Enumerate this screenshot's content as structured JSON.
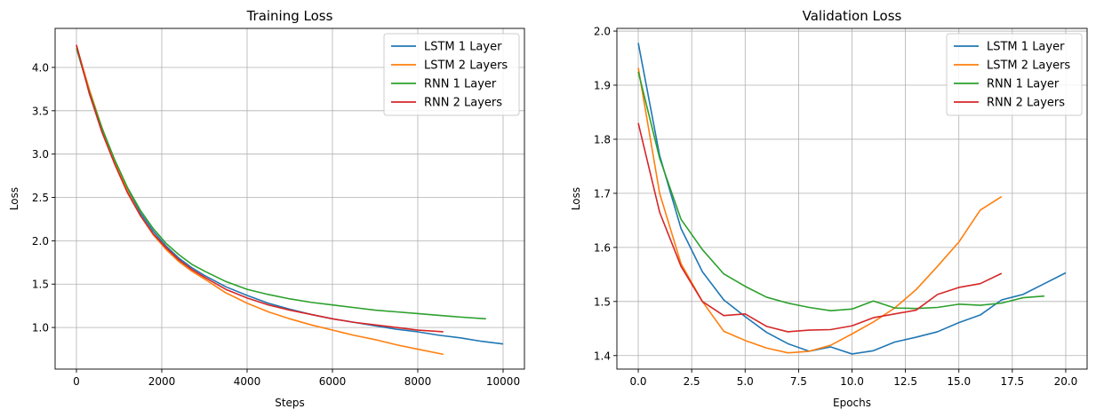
{
  "chart_data": [
    {
      "type": "line",
      "title": "Training Loss",
      "xlabel": "Steps",
      "ylabel": "Loss",
      "xlim": [
        -500,
        10500
      ],
      "ylim": [
        0.52,
        4.45
      ],
      "xticks": [
        0,
        2000,
        4000,
        6000,
        8000,
        10000
      ],
      "xtick_labels": [
        "0",
        "2000",
        "4000",
        "6000",
        "8000",
        "10000"
      ],
      "yticks": [
        1.0,
        1.5,
        2.0,
        2.5,
        3.0,
        3.5,
        4.0
      ],
      "ytick_labels": [
        "1.0",
        "1.5",
        "2.0",
        "2.5",
        "3.0",
        "3.5",
        "4.0"
      ],
      "grid": true,
      "legend": "upper right",
      "series": [
        {
          "name": "LSTM 1 Layer",
          "color": "#1f77b4",
          "x": [
            0,
            300,
            600,
            900,
            1200,
            1500,
            1800,
            2100,
            2400,
            2700,
            3000,
            3500,
            4000,
            4500,
            5000,
            5500,
            6000,
            6500,
            7000,
            7500,
            8000,
            8500,
            9000,
            9500,
            10000
          ],
          "y": [
            4.25,
            3.72,
            3.28,
            2.9,
            2.58,
            2.32,
            2.11,
            1.94,
            1.8,
            1.69,
            1.6,
            1.47,
            1.37,
            1.28,
            1.21,
            1.15,
            1.1,
            1.06,
            1.02,
            0.98,
            0.95,
            0.91,
            0.88,
            0.84,
            0.81
          ]
        },
        {
          "name": "LSTM 2 Layers",
          "color": "#ff7f0e",
          "x": [
            0,
            300,
            600,
            900,
            1200,
            1500,
            1800,
            2100,
            2400,
            2700,
            3000,
            3500,
            4000,
            4500,
            5000,
            5500,
            6000,
            6500,
            7000,
            7500,
            8000,
            8600
          ],
          "y": [
            4.25,
            3.75,
            3.3,
            2.9,
            2.57,
            2.29,
            2.07,
            1.9,
            1.76,
            1.65,
            1.56,
            1.4,
            1.28,
            1.18,
            1.1,
            1.03,
            0.97,
            0.91,
            0.86,
            0.8,
            0.75,
            0.69
          ]
        },
        {
          "name": "RNN 1 Layer",
          "color": "#2ca02c",
          "x": [
            0,
            300,
            600,
            900,
            1200,
            1500,
            1800,
            2100,
            2400,
            2700,
            3000,
            3500,
            4000,
            4500,
            5000,
            5500,
            6000,
            6500,
            7000,
            7500,
            8000,
            8500,
            9000,
            9600
          ],
          "y": [
            4.22,
            3.72,
            3.3,
            2.93,
            2.61,
            2.35,
            2.14,
            1.97,
            1.84,
            1.73,
            1.65,
            1.53,
            1.44,
            1.38,
            1.33,
            1.29,
            1.26,
            1.23,
            1.2,
            1.18,
            1.16,
            1.14,
            1.12,
            1.1
          ]
        },
        {
          "name": "RNN 2 Layers",
          "color": "#d62728",
          "x": [
            0,
            300,
            600,
            900,
            1200,
            1500,
            1800,
            2100,
            2400,
            2700,
            3000,
            3500,
            4000,
            4500,
            5000,
            5500,
            6000,
            6500,
            7000,
            7500,
            8000,
            8600
          ],
          "y": [
            4.26,
            3.7,
            3.25,
            2.88,
            2.55,
            2.29,
            2.08,
            1.92,
            1.78,
            1.67,
            1.58,
            1.44,
            1.34,
            1.26,
            1.2,
            1.15,
            1.1,
            1.06,
            1.03,
            1.0,
            0.97,
            0.95
          ]
        }
      ]
    },
    {
      "type": "line",
      "title": "Validation Loss",
      "xlabel": "Epochs",
      "ylabel": "Loss",
      "xlim": [
        -1.0,
        21.0
      ],
      "ylim": [
        1.375,
        2.005
      ],
      "xticks": [
        0,
        2.5,
        5,
        7.5,
        10,
        12.5,
        15,
        17.5,
        20
      ],
      "xtick_labels": [
        "0.0",
        "2.5",
        "5.0",
        "7.5",
        "10.0",
        "12.5",
        "15.0",
        "17.5",
        "20.0"
      ],
      "yticks": [
        1.4,
        1.5,
        1.6,
        1.7,
        1.8,
        1.9,
        2.0
      ],
      "ytick_labels": [
        "1.4",
        "1.5",
        "1.6",
        "1.7",
        "1.8",
        "1.9",
        "2.0"
      ],
      "grid": true,
      "legend": "upper right",
      "series": [
        {
          "name": "LSTM 1 Layer",
          "color": "#1f77b4",
          "x": [
            0,
            1,
            2,
            3,
            4,
            5,
            6,
            7,
            8,
            9,
            10,
            11,
            12,
            13,
            14,
            15,
            16,
            17,
            18,
            19,
            20
          ],
          "y": [
            1.978,
            1.77,
            1.635,
            1.555,
            1.503,
            1.472,
            1.443,
            1.422,
            1.408,
            1.416,
            1.403,
            1.409,
            1.425,
            1.434,
            1.444,
            1.461,
            1.475,
            1.503,
            1.513,
            1.533,
            1.553
          ]
        },
        {
          "name": "LSTM 2 Layers",
          "color": "#ff7f0e",
          "x": [
            0,
            1,
            2,
            3,
            4,
            5,
            6,
            7,
            8,
            9,
            10,
            11,
            12,
            13,
            14,
            15,
            16,
            17
          ],
          "y": [
            1.932,
            1.7,
            1.57,
            1.5,
            1.445,
            1.428,
            1.414,
            1.405,
            1.408,
            1.419,
            1.44,
            1.462,
            1.488,
            1.522,
            1.565,
            1.61,
            1.669,
            1.694
          ]
        },
        {
          "name": "RNN 1 Layer",
          "color": "#2ca02c",
          "x": [
            0,
            1,
            2,
            3,
            4,
            5,
            6,
            7,
            8,
            9,
            10,
            11,
            12,
            13,
            14,
            15,
            16,
            17,
            18,
            19
          ],
          "y": [
            1.925,
            1.765,
            1.652,
            1.596,
            1.551,
            1.528,
            1.508,
            1.497,
            1.489,
            1.483,
            1.486,
            1.501,
            1.488,
            1.487,
            1.489,
            1.495,
            1.493,
            1.497,
            1.507,
            1.51
          ]
        },
        {
          "name": "RNN 2 Layers",
          "color": "#d62728",
          "x": [
            0,
            1,
            2,
            3,
            4,
            5,
            6,
            7,
            8,
            9,
            10,
            11,
            12,
            13,
            14,
            15,
            16,
            17
          ],
          "y": [
            1.83,
            1.665,
            1.565,
            1.5,
            1.474,
            1.477,
            1.454,
            1.444,
            1.447,
            1.448,
            1.455,
            1.47,
            1.477,
            1.484,
            1.513,
            1.526,
            1.533,
            1.552
          ]
        }
      ]
    }
  ]
}
